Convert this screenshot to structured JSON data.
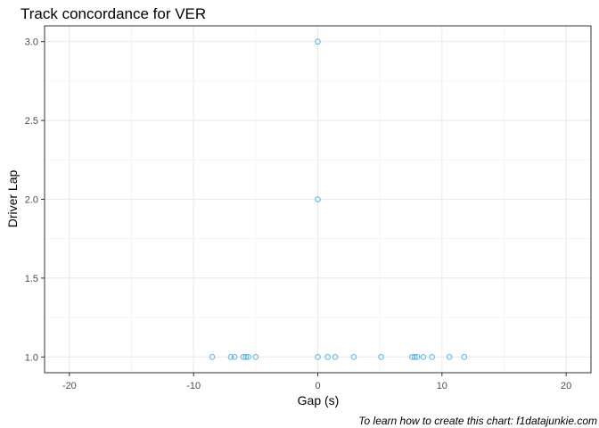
{
  "chart_data": {
    "type": "scatter",
    "title": "Track concordance for  VER",
    "xlabel": "Gap (s)",
    "ylabel": "Driver Lap",
    "caption": "To learn how to create this chart: f1datajunkie.com",
    "xlim": [
      -22,
      22
    ],
    "ylim": [
      0.9,
      3.1
    ],
    "x_ticks": [
      -20,
      -10,
      0,
      10,
      20
    ],
    "x_tick_labels": [
      "-20",
      "-10",
      "0",
      "10",
      "20"
    ],
    "y_ticks": [
      1.0,
      1.5,
      2.0,
      2.5,
      3.0
    ],
    "y_tick_labels": [
      "1.0",
      "1.5",
      "2.0",
      "2.5",
      "3.0"
    ],
    "grid": true,
    "point_color": "#56B4E9",
    "points": [
      {
        "x": 0,
        "y": 3
      },
      {
        "x": 0,
        "y": 2
      },
      {
        "x": -8.5,
        "y": 1
      },
      {
        "x": -7.0,
        "y": 1
      },
      {
        "x": -6.7,
        "y": 1
      },
      {
        "x": -6.0,
        "y": 1
      },
      {
        "x": -5.8,
        "y": 1
      },
      {
        "x": -5.6,
        "y": 1
      },
      {
        "x": -5.0,
        "y": 1
      },
      {
        "x": 0,
        "y": 1
      },
      {
        "x": 0.8,
        "y": 1
      },
      {
        "x": 1.4,
        "y": 1
      },
      {
        "x": 2.9,
        "y": 1
      },
      {
        "x": 5.1,
        "y": 1
      },
      {
        "x": 7.6,
        "y": 1
      },
      {
        "x": 7.8,
        "y": 1
      },
      {
        "x": 8.0,
        "y": 1
      },
      {
        "x": 8.5,
        "y": 1
      },
      {
        "x": 9.2,
        "y": 1
      },
      {
        "x": 10.6,
        "y": 1
      },
      {
        "x": 11.8,
        "y": 1
      }
    ]
  }
}
